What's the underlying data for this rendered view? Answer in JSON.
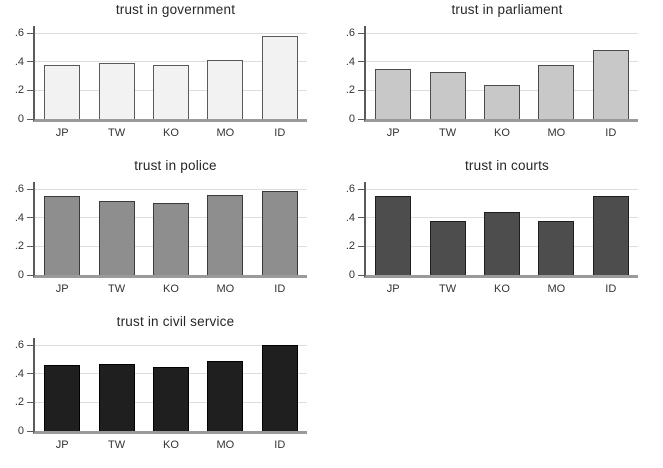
{
  "page": {
    "background": "#ffffff",
    "layout": "2x3-grid-of-bar-charts",
    "grid_color": "#dedede",
    "axis_color": "#5a5a5a",
    "baseline_color": "#9a9a9a",
    "text_color": "#333333",
    "title_color": "#262626"
  },
  "chart_data": [
    {
      "type": "bar",
      "title": "trust in government",
      "categories": [
        "JP",
        "TW",
        "KO",
        "MO",
        "ID"
      ],
      "values": [
        0.38,
        0.39,
        0.38,
        0.41,
        0.58
      ],
      "bar_fill": "#f2f2f2",
      "bar_border": "#595959",
      "xlabel": "",
      "ylabel": "",
      "ylim": [
        0,
        0.65
      ],
      "grid": true,
      "legend": "none",
      "yticks": [
        {
          "v": 0,
          "label": "0"
        },
        {
          "v": 0.2,
          "label": ".2"
        },
        {
          "v": 0.4,
          "label": ".4"
        },
        {
          "v": 0.6,
          "label": ".6"
        }
      ]
    },
    {
      "type": "bar",
      "title": "trust in parliament",
      "categories": [
        "JP",
        "TW",
        "KO",
        "MO",
        "ID"
      ],
      "values": [
        0.35,
        0.33,
        0.24,
        0.38,
        0.48
      ],
      "bar_fill": "#c8c8c8",
      "bar_border": "#4a4a4a",
      "xlabel": "",
      "ylabel": "",
      "ylim": [
        0,
        0.65
      ],
      "grid": true,
      "legend": "none",
      "yticks": [
        {
          "v": 0,
          "label": "0"
        },
        {
          "v": 0.2,
          "label": ".2"
        },
        {
          "v": 0.4,
          "label": ".4"
        },
        {
          "v": 0.6,
          "label": ".6"
        }
      ]
    },
    {
      "type": "bar",
      "title": "trust in police",
      "categories": [
        "JP",
        "TW",
        "KO",
        "MO",
        "ID"
      ],
      "values": [
        0.55,
        0.52,
        0.5,
        0.56,
        0.59
      ],
      "bar_fill": "#8e8e8e",
      "bar_border": "#3b3b3b",
      "xlabel": "",
      "ylabel": "",
      "ylim": [
        0,
        0.65
      ],
      "grid": true,
      "legend": "none",
      "yticks": [
        {
          "v": 0,
          "label": "0"
        },
        {
          "v": 0.2,
          "label": ".2"
        },
        {
          "v": 0.4,
          "label": ".4"
        },
        {
          "v": 0.6,
          "label": ".6"
        }
      ]
    },
    {
      "type": "bar",
      "title": "trust in courts",
      "categories": [
        "JP",
        "TW",
        "KO",
        "MO",
        "ID"
      ],
      "values": [
        0.55,
        0.38,
        0.44,
        0.38,
        0.55
      ],
      "bar_fill": "#4d4d4d",
      "bar_border": "#1f1f1f",
      "xlabel": "",
      "ylabel": "",
      "ylim": [
        0,
        0.65
      ],
      "grid": true,
      "legend": "none",
      "yticks": [
        {
          "v": 0,
          "label": "0"
        },
        {
          "v": 0.2,
          "label": ".2"
        },
        {
          "v": 0.4,
          "label": ".4"
        },
        {
          "v": 0.6,
          "label": ".6"
        }
      ]
    },
    {
      "type": "bar",
      "title": "trust in civil service",
      "categories": [
        "JP",
        "TW",
        "KO",
        "MO",
        "ID"
      ],
      "values": [
        0.46,
        0.47,
        0.45,
        0.49,
        0.6
      ],
      "bar_fill": "#1f1f1f",
      "bar_border": "#000000",
      "xlabel": "",
      "ylabel": "",
      "ylim": [
        0,
        0.65
      ],
      "grid": true,
      "legend": "none",
      "yticks": [
        {
          "v": 0,
          "label": "0"
        },
        {
          "v": 0.2,
          "label": ".2"
        },
        {
          "v": 0.4,
          "label": ".4"
        },
        {
          "v": 0.6,
          "label": ".6"
        }
      ]
    }
  ]
}
